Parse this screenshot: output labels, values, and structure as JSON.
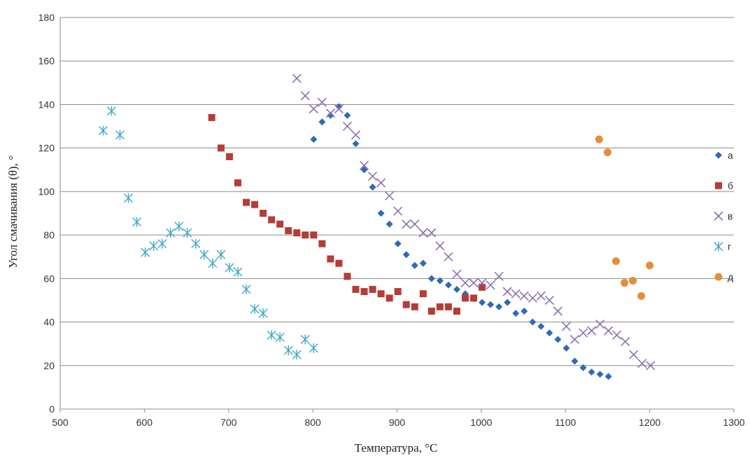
{
  "chart_data": {
    "type": "scatter",
    "title": "",
    "xlabel": "Температура, °C",
    "ylabel": "Угол смачивания (θ), °",
    "xlim": [
      500,
      1300
    ],
    "ylim": [
      0,
      180
    ],
    "xticks": [
      500,
      600,
      700,
      800,
      900,
      1000,
      1100,
      1200,
      1300
    ],
    "yticks": [
      0,
      20,
      40,
      60,
      80,
      100,
      120,
      140,
      160,
      180
    ],
    "grid": "horizontal",
    "legend_position": "right",
    "series": [
      {
        "name": "а",
        "marker": "diamond",
        "color": "#2e6bb5",
        "points": [
          [
            801,
            124
          ],
          [
            811,
            132
          ],
          [
            821,
            135
          ],
          [
            831,
            139
          ],
          [
            841,
            135
          ],
          [
            851,
            122
          ],
          [
            861,
            110
          ],
          [
            871,
            102
          ],
          [
            881,
            90
          ],
          [
            891,
            85
          ],
          [
            901,
            76
          ],
          [
            911,
            71
          ],
          [
            921,
            66
          ],
          [
            931,
            67
          ],
          [
            941,
            60
          ],
          [
            951,
            59
          ],
          [
            961,
            57
          ],
          [
            971,
            55
          ],
          [
            981,
            53
          ],
          [
            991,
            51
          ],
          [
            1001,
            49
          ],
          [
            1011,
            48
          ],
          [
            1021,
            47
          ],
          [
            1031,
            49
          ],
          [
            1041,
            44
          ],
          [
            1051,
            45
          ],
          [
            1061,
            40
          ],
          [
            1071,
            38
          ],
          [
            1081,
            35
          ],
          [
            1091,
            32
          ],
          [
            1101,
            28
          ],
          [
            1111,
            22
          ],
          [
            1121,
            19
          ],
          [
            1131,
            17
          ],
          [
            1141,
            16
          ],
          [
            1151,
            15
          ]
        ]
      },
      {
        "name": "б",
        "marker": "square",
        "color": "#b53d36",
        "points": [
          [
            680,
            134
          ],
          [
            691,
            120
          ],
          [
            701,
            116
          ],
          [
            711,
            104
          ],
          [
            721,
            95
          ],
          [
            731,
            94
          ],
          [
            741,
            90
          ],
          [
            751,
            87
          ],
          [
            761,
            85
          ],
          [
            771,
            82
          ],
          [
            781,
            81
          ],
          [
            791,
            80
          ],
          [
            801,
            80
          ],
          [
            811,
            76
          ],
          [
            821,
            69
          ],
          [
            831,
            67
          ],
          [
            841,
            61
          ],
          [
            851,
            55
          ],
          [
            861,
            54
          ],
          [
            871,
            55
          ],
          [
            881,
            53
          ],
          [
            891,
            51
          ],
          [
            901,
            54
          ],
          [
            911,
            48
          ],
          [
            921,
            47
          ],
          [
            931,
            53
          ],
          [
            941,
            45
          ],
          [
            951,
            47
          ],
          [
            961,
            47
          ],
          [
            971,
            45
          ],
          [
            981,
            51
          ],
          [
            991,
            51
          ],
          [
            1001,
            56
          ]
        ]
      },
      {
        "name": "в",
        "marker": "x",
        "color": "#8c72b0",
        "points": [
          [
            781,
            152
          ],
          [
            791,
            144
          ],
          [
            801,
            138
          ],
          [
            811,
            141
          ],
          [
            821,
            136
          ],
          [
            831,
            138
          ],
          [
            841,
            130
          ],
          [
            851,
            126
          ],
          [
            861,
            112
          ],
          [
            871,
            107
          ],
          [
            881,
            104
          ],
          [
            891,
            98
          ],
          [
            901,
            91
          ],
          [
            911,
            85
          ],
          [
            921,
            85
          ],
          [
            931,
            81
          ],
          [
            941,
            81
          ],
          [
            951,
            75
          ],
          [
            961,
            70
          ],
          [
            971,
            62
          ],
          [
            981,
            58
          ],
          [
            991,
            58
          ],
          [
            1001,
            58
          ],
          [
            1011,
            57
          ],
          [
            1021,
            61
          ],
          [
            1031,
            54
          ],
          [
            1041,
            53
          ],
          [
            1051,
            52
          ],
          [
            1061,
            51
          ],
          [
            1071,
            52
          ],
          [
            1081,
            50
          ],
          [
            1091,
            45
          ],
          [
            1101,
            38
          ],
          [
            1111,
            32
          ],
          [
            1121,
            35
          ],
          [
            1131,
            36
          ],
          [
            1141,
            39
          ],
          [
            1151,
            36
          ],
          [
            1161,
            34
          ],
          [
            1171,
            31
          ],
          [
            1181,
            25
          ],
          [
            1191,
            21
          ],
          [
            1201,
            20
          ]
        ]
      },
      {
        "name": "г",
        "marker": "asterisk",
        "color": "#3fa7c8",
        "points": [
          [
            551,
            128
          ],
          [
            561,
            137
          ],
          [
            571,
            126
          ],
          [
            581,
            97
          ],
          [
            591,
            86
          ],
          [
            601,
            72
          ],
          [
            611,
            75
          ],
          [
            621,
            76
          ],
          [
            631,
            81
          ],
          [
            641,
            84
          ],
          [
            651,
            81
          ],
          [
            661,
            76
          ],
          [
            671,
            71
          ],
          [
            681,
            67
          ],
          [
            691,
            71
          ],
          [
            701,
            65
          ],
          [
            711,
            63
          ],
          [
            721,
            55
          ],
          [
            731,
            46
          ],
          [
            741,
            44
          ],
          [
            751,
            34
          ],
          [
            761,
            33
          ],
          [
            771,
            27
          ],
          [
            781,
            25
          ],
          [
            791,
            32
          ],
          [
            801,
            28
          ]
        ]
      },
      {
        "name": "д",
        "marker": "circle",
        "color": "#e58e3a",
        "points": [
          [
            1140,
            124
          ],
          [
            1150,
            118
          ],
          [
            1160,
            68
          ],
          [
            1170,
            58
          ],
          [
            1180,
            59
          ],
          [
            1190,
            52
          ],
          [
            1200,
            66
          ]
        ]
      }
    ]
  }
}
